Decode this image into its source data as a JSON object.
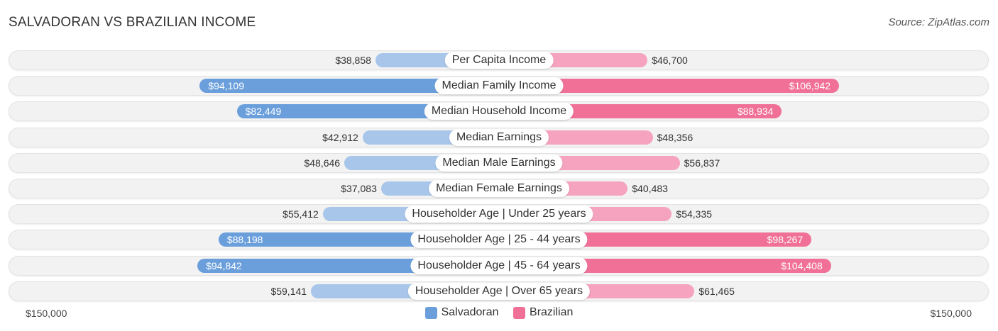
{
  "header": {
    "title": "SALVADORAN VS BRAZILIAN INCOME",
    "source": "Source: ZipAtlas.com"
  },
  "colors": {
    "salvadoran_strong": "#6a9fdc",
    "salvadoran_light": "#a8c6ea",
    "brazilian_strong": "#f07098",
    "brazilian_light": "#f5a3bf"
  },
  "chart_data": {
    "type": "bar",
    "orientation": "diverging-horizontal",
    "title": "SALVADORAN VS BRAZILIAN INCOME",
    "categories": [
      "Per Capita Income",
      "Median Family Income",
      "Median Household Income",
      "Median Earnings",
      "Median Male Earnings",
      "Median Female Earnings",
      "Householder Age | Under 25 years",
      "Householder Age | 25 - 44 years",
      "Householder Age | 45 - 64 years",
      "Householder Age | Over 65 years"
    ],
    "series": [
      {
        "name": "Salvadoran",
        "side": "left",
        "values": [
          38858,
          94109,
          82449,
          42912,
          48646,
          37083,
          55412,
          88198,
          94842,
          59141
        ],
        "labels": [
          "$38,858",
          "$94,109",
          "$82,449",
          "$42,912",
          "$48,646",
          "$37,083",
          "$55,412",
          "$88,198",
          "$94,842",
          "$59,141"
        ]
      },
      {
        "name": "Brazilian",
        "side": "right",
        "values": [
          46700,
          106942,
          88934,
          48356,
          56837,
          40483,
          54335,
          98267,
          104408,
          61465
        ],
        "labels": [
          "$46,700",
          "$106,942",
          "$88,934",
          "$48,356",
          "$56,837",
          "$40,483",
          "$54,335",
          "$98,267",
          "$104,408",
          "$61,465"
        ]
      }
    ],
    "xlim": [
      0,
      150000
    ],
    "axis_labels": {
      "left": "$150,000",
      "right": "$150,000"
    },
    "legend": [
      "Salvadoran",
      "Brazilian"
    ],
    "legend_position": "bottom-center"
  }
}
